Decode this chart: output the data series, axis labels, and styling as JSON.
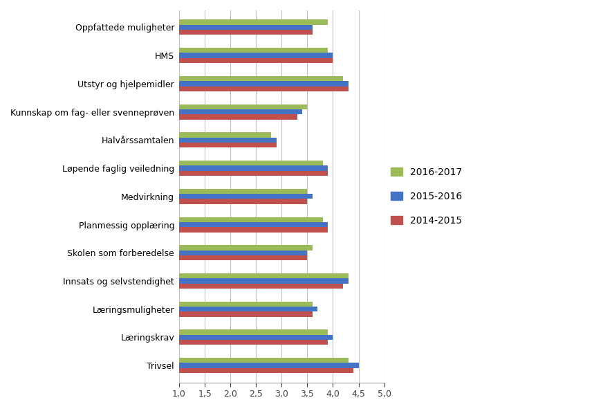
{
  "categories": [
    "Trivsel",
    "Læringskrav",
    "Læringsmuligheter",
    "Innsats og selvstendighet",
    "Skolen som forberedelse",
    "Planmessig opplæring",
    "Medvirkning",
    "Løpende faglig veiledning",
    "Halvårssamtalen",
    "Kunnskap om fag- eller svenneprøven",
    "Utstyr og hjelpemidler",
    "HMS",
    "Oppfattede muligheter"
  ],
  "series": {
    "2016-2017": [
      4.3,
      3.9,
      3.6,
      4.3,
      3.6,
      3.8,
      3.5,
      3.8,
      2.8,
      3.5,
      4.2,
      3.9,
      3.9
    ],
    "2015-2016": [
      4.5,
      4.0,
      3.7,
      4.3,
      3.5,
      3.9,
      3.6,
      3.9,
      2.9,
      3.4,
      4.3,
      4.0,
      3.6
    ],
    "2014-2015": [
      4.4,
      3.9,
      3.6,
      4.2,
      3.5,
      3.9,
      3.5,
      3.9,
      2.9,
      3.3,
      4.3,
      4.0,
      3.6
    ]
  },
  "series_colors": {
    "2016-2017": "#9BBB59",
    "2015-2016": "#4472C4",
    "2014-2015": "#C0504D"
  },
  "xlim": [
    1.0,
    5.0
  ],
  "xticks": [
    1.0,
    1.5,
    2.0,
    2.5,
    3.0,
    3.5,
    4.0,
    4.5,
    5.0
  ],
  "xtick_labels": [
    "1,0",
    "1,5",
    "2,0",
    "2,5",
    "3,0",
    "3,5",
    "4,0",
    "4,5",
    "5,0"
  ],
  "background_color": "#FFFFFF",
  "bar_height": 0.18,
  "bar_gap": 0.0,
  "grid_color": "#C0C0C0",
  "series_order": [
    "2016-2017",
    "2015-2016",
    "2014-2015"
  ]
}
